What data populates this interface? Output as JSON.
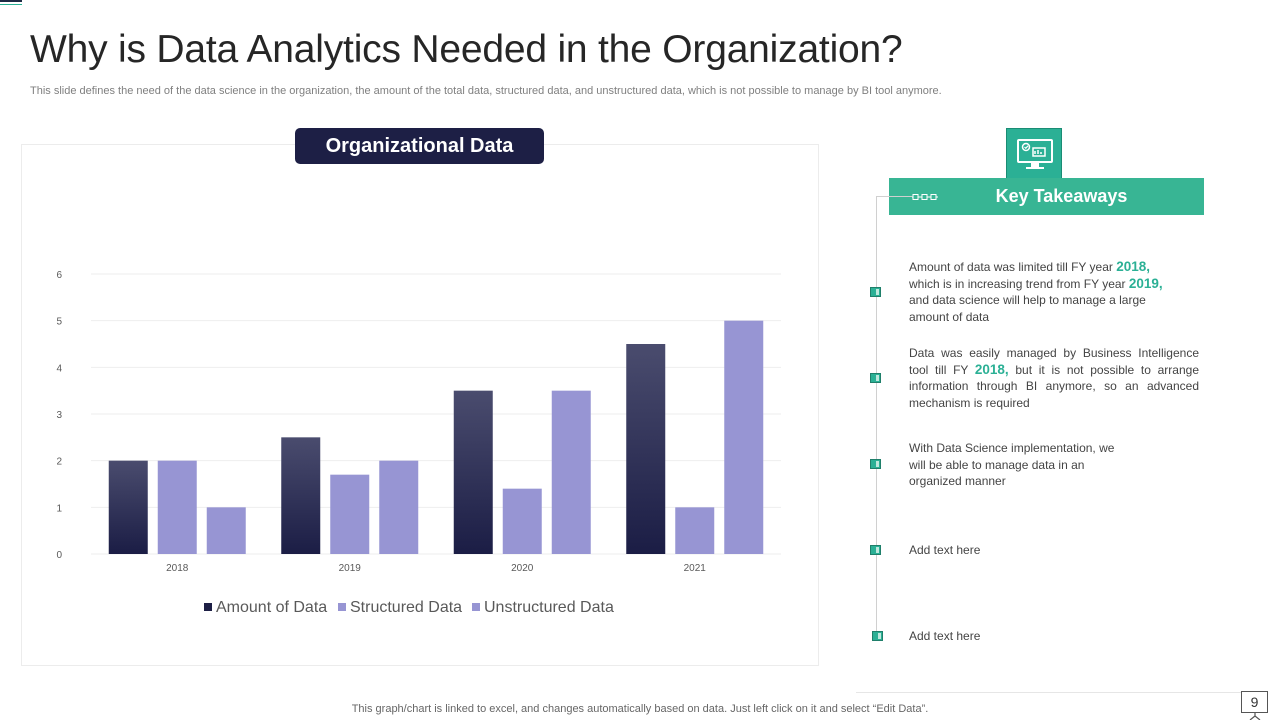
{
  "title": "Why is Data Analytics Needed in the Organization?",
  "subtitle": "This slide defines the need of the data science in the organization, the amount of the total data, structured data, and unstructured data, which is not possible to manage by BI tool anymore.",
  "chart_label": "Organizational Data",
  "chart_data": {
    "type": "bar",
    "categories": [
      "2018",
      "2019",
      "2020",
      "2021"
    ],
    "series": [
      {
        "name": "Amount of Data",
        "values": [
          2,
          2.5,
          3.5,
          4.5
        ],
        "color": "#1d1f45"
      },
      {
        "name": "Structured Data",
        "values": [
          2,
          1.7,
          1.4,
          1
        ],
        "color": "#9795d3"
      },
      {
        "name": "Unstructured Data",
        "values": [
          1,
          2,
          3.5,
          5
        ],
        "color": "#9795d3"
      }
    ],
    "yticks": [
      "0",
      "1",
      "2",
      "3",
      "4",
      "5",
      "6"
    ],
    "ylim": [
      0,
      6
    ],
    "grid": true,
    "legend": "bottom"
  },
  "takeaways": {
    "heading": "Key Takeaways",
    "item1": {
      "a": "Amount of data was limited till FY year ",
      "y1": "2018,",
      "b": " which is in increasing trend from FY year ",
      "y2": "2019,",
      "c": " and data science will help to manage a large amount of data"
    },
    "item2": {
      "a": "Data was easily managed by Business Intelligence tool till FY ",
      "y1": "2018,",
      "b": " but it is not possible to arrange information through BI anymore, so an advanced  mechanism is required"
    },
    "item3": "With Data Science implementation, we will be able to manage data in an organized  manner",
    "item4": "Add text here",
    "item5": "Add text here"
  },
  "footer": "This graph/chart is linked to excel,  and changes automatically based on data. Just left click on it and select “Edit Data”.",
  "page_number": "9",
  "icons": [
    "monitor-analytics-icon",
    "presentation-stand-icon"
  ]
}
